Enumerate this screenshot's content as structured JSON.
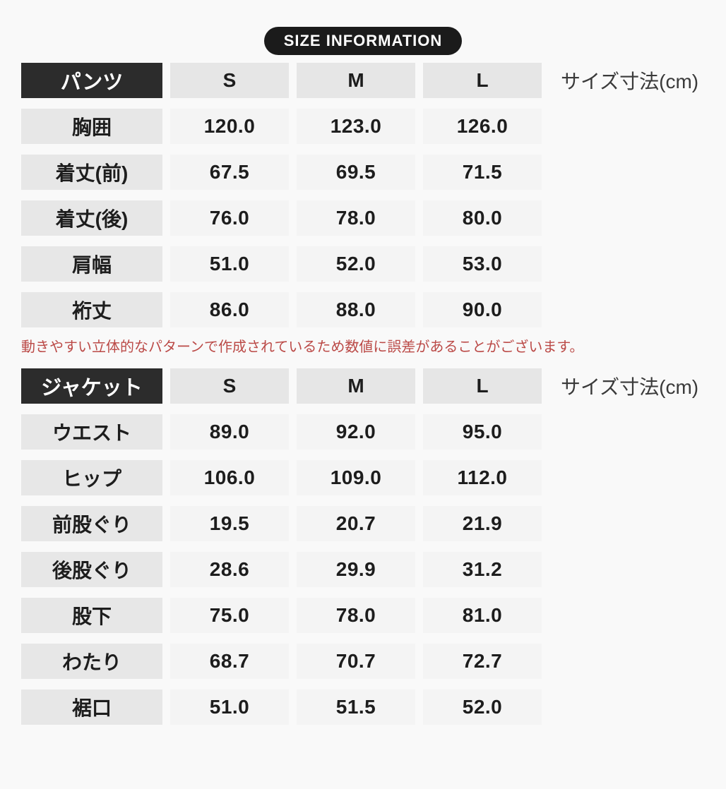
{
  "badge": {
    "label": "SIZE INFORMATION"
  },
  "note": {
    "text": "動きやすい立体的なパターンで作成されているため数値に誤差があることがございます。",
    "color": "#bb4a47"
  },
  "colors": {
    "page_background": "#f9f9f9",
    "header_black": "#2c2c2c",
    "badge_black": "#1b1b1b",
    "label_cell_gray": "#e7e7e7",
    "value_cell_gray": "#f4f4f4",
    "note_red": "#bb4a47",
    "text_dark": "#1d1d1d"
  },
  "chart_data": [
    {
      "type": "table",
      "title": "パンツ",
      "unit_label": "サイズ寸法(cm)",
      "columns": [
        "S",
        "M",
        "L"
      ],
      "rows": [
        {
          "label": "胸囲",
          "values": [
            "120.0",
            "123.0",
            "126.0"
          ]
        },
        {
          "label": "着丈(前)",
          "values": [
            "67.5",
            "69.5",
            "71.5"
          ]
        },
        {
          "label": "着丈(後)",
          "values": [
            "76.0",
            "78.0",
            "80.0"
          ]
        },
        {
          "label": "肩幅",
          "values": [
            "51.0",
            "52.0",
            "53.0"
          ]
        },
        {
          "label": "裄丈",
          "values": [
            "86.0",
            "88.0",
            "90.0"
          ]
        }
      ]
    },
    {
      "type": "table",
      "title": "ジャケット",
      "unit_label": "サイズ寸法(cm)",
      "columns": [
        "S",
        "M",
        "L"
      ],
      "rows": [
        {
          "label": "ウエスト",
          "values": [
            "89.0",
            "92.0",
            "95.0"
          ]
        },
        {
          "label": "ヒップ",
          "values": [
            "106.0",
            "109.0",
            "112.0"
          ]
        },
        {
          "label": "前股ぐり",
          "values": [
            "19.5",
            "20.7",
            "21.9"
          ]
        },
        {
          "label": "後股ぐり",
          "values": [
            "28.6",
            "29.9",
            "31.2"
          ]
        },
        {
          "label": "股下",
          "values": [
            "75.0",
            "78.0",
            "81.0"
          ]
        },
        {
          "label": "わたり",
          "values": [
            "68.7",
            "70.7",
            "72.7"
          ]
        },
        {
          "label": "裾口",
          "values": [
            "51.0",
            "51.5",
            "52.0"
          ]
        }
      ]
    }
  ]
}
